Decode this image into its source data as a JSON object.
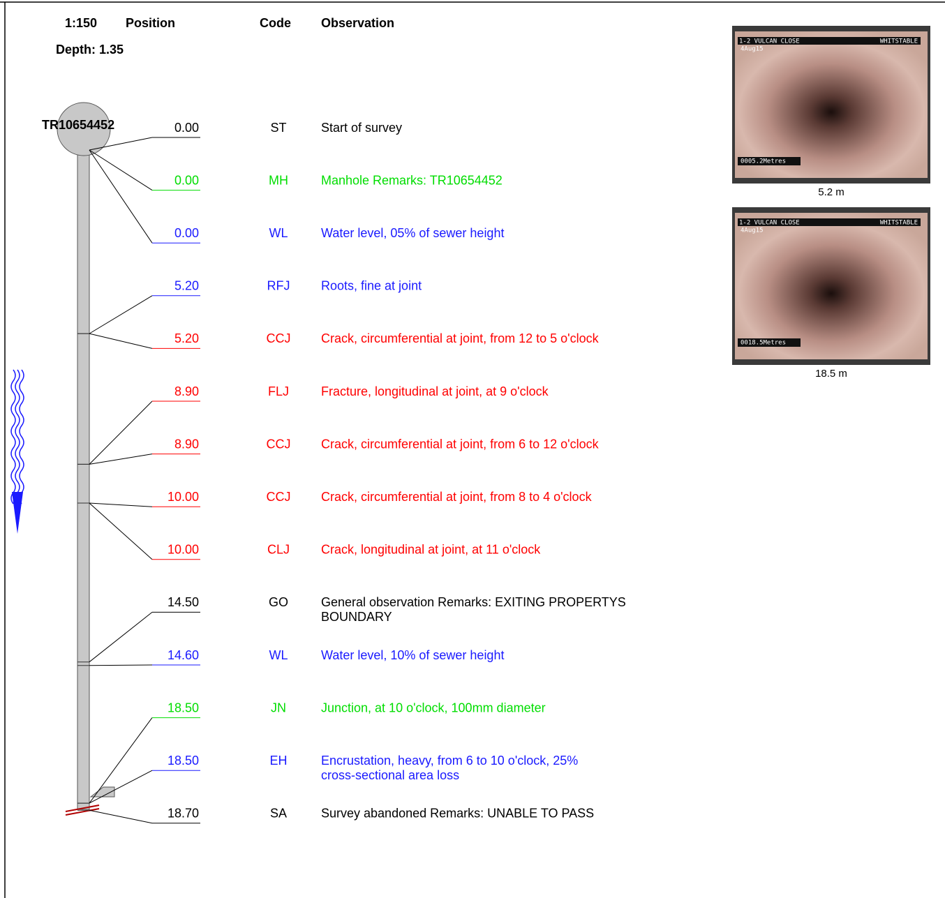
{
  "header": {
    "scale": "1:150",
    "position": "Position",
    "code": "Code",
    "observation": "Observation",
    "depth": "Depth: 1.35"
  },
  "manhole": "TR10654452",
  "rows": [
    {
      "position": "0.00",
      "code": "ST",
      "observation": [
        "Start of survey"
      ],
      "color": "#000000"
    },
    {
      "position": "0.00",
      "code": "MH",
      "observation": [
        "Manhole Remarks: TR10654452"
      ],
      "color": "#00dd00"
    },
    {
      "position": "0.00",
      "code": "WL",
      "observation": [
        "Water level, 05% of sewer height"
      ],
      "color": "#1a1aff"
    },
    {
      "position": "5.20",
      "code": "RFJ",
      "observation": [
        "Roots, fine at joint"
      ],
      "color": "#1a1aff"
    },
    {
      "position": "5.20",
      "code": "CCJ",
      "observation": [
        "Crack, circumferential at joint, from 12 to 5 o'clock"
      ],
      "color": "#ff0000"
    },
    {
      "position": "8.90",
      "code": "FLJ",
      "observation": [
        "Fracture, longitudinal at joint, at 9 o'clock"
      ],
      "color": "#ff0000"
    },
    {
      "position": "8.90",
      "code": "CCJ",
      "observation": [
        "Crack, circumferential at joint, from 6 to 12 o'clock"
      ],
      "color": "#ff0000"
    },
    {
      "position": "10.00",
      "code": "CCJ",
      "observation": [
        "Crack, circumferential at joint, from 8 to 4 o'clock"
      ],
      "color": "#ff0000"
    },
    {
      "position": "10.00",
      "code": "CLJ",
      "observation": [
        "Crack, longitudinal at joint, at 11 o'clock"
      ],
      "color": "#ff0000"
    },
    {
      "position": "14.50",
      "code": "GO",
      "observation": [
        "General observation Remarks: EXITING PROPERTYS",
        "BOUNDARY"
      ],
      "color": "#000000"
    },
    {
      "position": "14.60",
      "code": "WL",
      "observation": [
        "Water level, 10% of sewer height"
      ],
      "color": "#1a1aff"
    },
    {
      "position": "18.50",
      "code": "JN",
      "observation": [
        "Junction, at 10 o'clock, 100mm diameter"
      ],
      "color": "#00dd00"
    },
    {
      "position": "18.50",
      "code": "EH",
      "observation": [
        "Encrustation, heavy, from 6 to 10 o'clock, 25%",
        "cross-sectional area loss"
      ],
      "color": "#1a1aff"
    },
    {
      "position": "18.70",
      "code": "SA",
      "observation": [
        "Survey abandoned Remarks: UNABLE TO PASS"
      ],
      "color": "#000000"
    }
  ],
  "photos": [
    {
      "caption": "5.2 m",
      "street": "1-2 VULCAN CLOSE",
      "town": "WHITSTABLE",
      "date": "4Aug15",
      "distance": "0005.2Metres"
    },
    {
      "caption": "18.5 m",
      "street": "1-2 VULCAN CLOSE",
      "town": "WHITSTABLE",
      "date": "4Aug15",
      "distance": "0018.5Metres"
    }
  ]
}
